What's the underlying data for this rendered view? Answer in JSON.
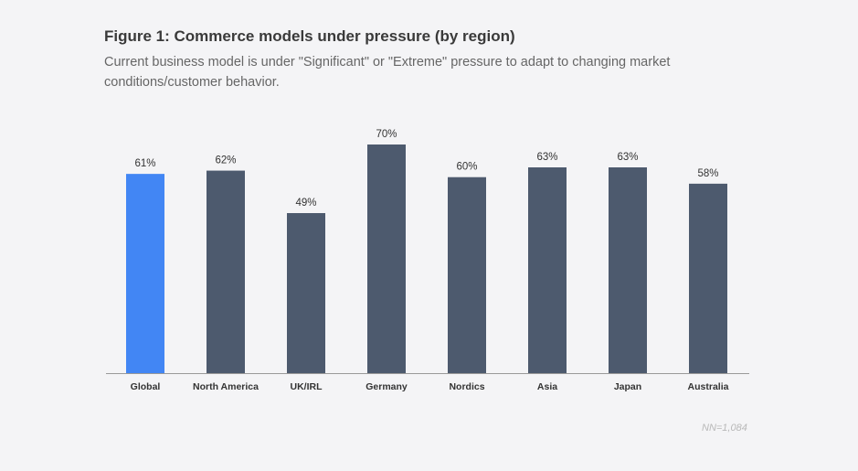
{
  "chart_data": {
    "type": "bar",
    "title": "Figure 1: Commerce models under pressure (by region)",
    "subtitle": "Current business model is under \"Significant\" or \"Extreme\" pressure to adapt to changing market conditions/customer behavior.",
    "categories": [
      "Global",
      "North America",
      "UK/IRL",
      "Germany",
      "Nordics",
      "Asia",
      "Japan",
      "Australia"
    ],
    "values": [
      61,
      62,
      49,
      70,
      60,
      63,
      63,
      58
    ],
    "value_labels": [
      "61%",
      "62%",
      "49%",
      "70%",
      "60%",
      "63%",
      "63%",
      "58%"
    ],
    "highlight_category": "Global",
    "colors": {
      "highlight": "#4286f4",
      "default": "#4d5a6e",
      "axis": "#999999"
    },
    "ylim": [
      0,
      70
    ],
    "xlabel": "",
    "ylabel": "",
    "grid": false,
    "note": "NN=1,084"
  }
}
